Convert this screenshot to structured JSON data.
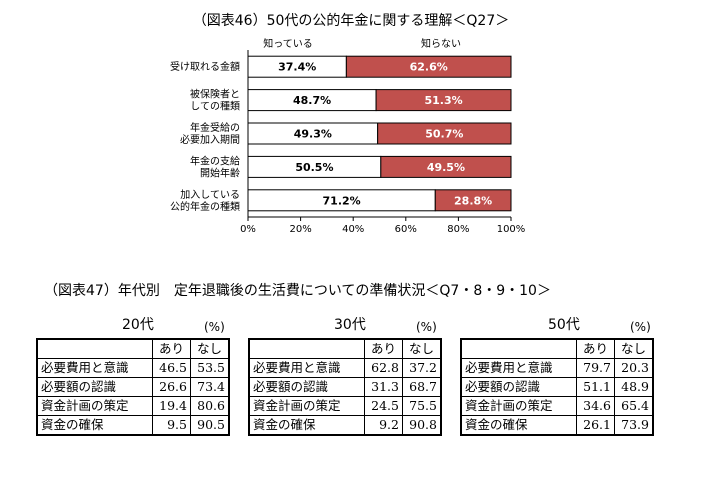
{
  "fig46": {
    "title": "（図表46）50代の公的年金に関する理解＜Q27＞"
  },
  "fig47": {
    "title": "（図表47）年代別　定年退職後の生活費についての準備状況＜Q7・8・9・10＞"
  },
  "chart_data": [
    {
      "type": "bar",
      "orientation": "horizontal",
      "stacked": true,
      "title": "（図表46）50代の公的年金に関する理解＜Q27＞",
      "categories": [
        [
          "受け取れる金額"
        ],
        [
          "被保険者と",
          "しての種類"
        ],
        [
          "年金受給の",
          "必要加入期間"
        ],
        [
          "年金の支給",
          "開始年齢"
        ],
        [
          "加入している",
          "公的年金の種類"
        ]
      ],
      "series": [
        {
          "name": "知っている",
          "color": "#ffffff",
          "values": [
            37.4,
            48.7,
            49.3,
            50.5,
            71.2
          ],
          "labels": [
            "37.4%",
            "48.7%",
            "49.3%",
            "50.5%",
            "71.2%"
          ]
        },
        {
          "name": "知らない",
          "color": "#c0504d",
          "values": [
            62.6,
            51.3,
            50.7,
            49.5,
            28.8
          ],
          "labels": [
            "62.6%",
            "51.3%",
            "50.7%",
            "49.5%",
            "28.8%"
          ]
        }
      ],
      "xlim": [
        0,
        100
      ],
      "xticks": [
        "0%",
        "20%",
        "40%",
        "60%",
        "80%",
        "100%"
      ],
      "legend": "top"
    },
    {
      "type": "table",
      "title": "20代",
      "unit": "(%)",
      "columns": [
        "あり",
        "なし"
      ],
      "rows": [
        {
          "label": "必要費用と意識",
          "values": [
            "46.5",
            "53.5"
          ]
        },
        {
          "label": "必要額の認識",
          "values": [
            "26.6",
            "73.4"
          ]
        },
        {
          "label": "資金計画の策定",
          "values": [
            "19.4",
            "80.6"
          ]
        },
        {
          "label": "資金の確保",
          "values": [
            "9.5",
            "90.5"
          ]
        }
      ]
    },
    {
      "type": "table",
      "title": "30代",
      "unit": "(%)",
      "columns": [
        "あり",
        "なし"
      ],
      "rows": [
        {
          "label": "必要費用と意識",
          "values": [
            "62.8",
            "37.2"
          ]
        },
        {
          "label": "必要額の認識",
          "values": [
            "31.3",
            "68.7"
          ]
        },
        {
          "label": "資金計画の策定",
          "values": [
            "24.5",
            "75.5"
          ]
        },
        {
          "label": "資金の確保",
          "values": [
            "9.2",
            "90.8"
          ]
        }
      ]
    },
    {
      "type": "table",
      "title": "50代",
      "unit": "(%)",
      "columns": [
        "あり",
        "なし"
      ],
      "rows": [
        {
          "label": "必要費用と意識",
          "values": [
            "79.7",
            "20.3"
          ]
        },
        {
          "label": "必要額の認識",
          "values": [
            "51.1",
            "48.9"
          ]
        },
        {
          "label": "資金計画の策定",
          "values": [
            "34.6",
            "65.4"
          ]
        },
        {
          "label": "資金の確保",
          "values": [
            "26.1",
            "73.9"
          ]
        }
      ]
    }
  ]
}
